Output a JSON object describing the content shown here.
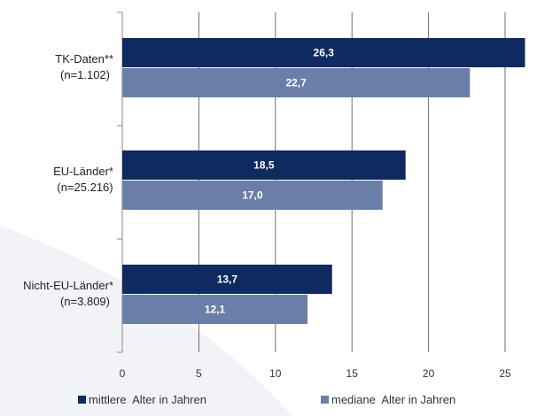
{
  "chart_data": {
    "type": "bar",
    "orientation": "horizontal",
    "categories": [
      {
        "name": "TK-Daten**",
        "n": "(n=1.102)"
      },
      {
        "name": "EU-Länder*",
        "n": "(n=25.216)"
      },
      {
        "name": "Nicht-EU-Länder*",
        "n": "(n=3.809)"
      }
    ],
    "series": [
      {
        "name": "mittlere  Alter in Jahren",
        "values": [
          26.3,
          18.5,
          13.7
        ],
        "labels": [
          "26,3",
          "18,5",
          "13,7"
        ],
        "color": "#0e2a5e"
      },
      {
        "name": "mediane  Alter in Jahren",
        "values": [
          22.7,
          17.0,
          12.1
        ],
        "labels": [
          "22,7",
          "17,0",
          "12,1"
        ],
        "color": "#6a7fa8"
      }
    ],
    "xlim": [
      0,
      26.8
    ],
    "xticks": [
      0,
      5,
      10,
      15,
      20,
      25
    ],
    "xtick_labels": [
      "0",
      "5",
      "10",
      "15",
      "20",
      "25"
    ],
    "grid": "vertical",
    "legend": "bottom",
    "title": "",
    "xlabel": "",
    "ylabel": ""
  }
}
